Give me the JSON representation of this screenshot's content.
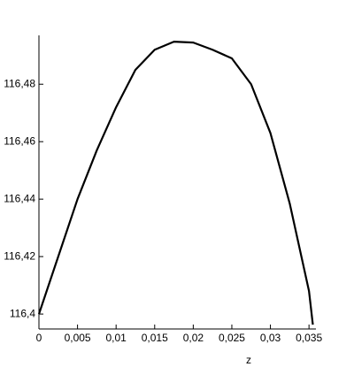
{
  "chart_data": {
    "type": "line",
    "xlabel": "z",
    "x": [
      0,
      0.0025,
      0.005,
      0.0075,
      0.01,
      0.0125,
      0.015,
      0.0175,
      0.02,
      0.0225,
      0.025,
      0.0275,
      0.03,
      0.0325,
      0.035,
      0.0355
    ],
    "values": [
      116.4,
      116.42,
      116.44,
      116.457,
      116.472,
      116.485,
      116.492,
      116.4948,
      116.4945,
      116.492,
      116.489,
      116.48,
      116.463,
      116.4385,
      116.408,
      116.3963
    ],
    "color": "#000000",
    "xlim": [
      0,
      0.0359
    ],
    "ylim": [
      116.3948,
      116.497
    ],
    "xticks": [
      0,
      {
        "value": 0.005,
        "label": "0,005"
      },
      {
        "value": 0.01,
        "label": "0,01"
      },
      {
        "value": 0.015,
        "label": "0,015"
      },
      {
        "value": 0.02,
        "label": "0,02"
      },
      {
        "value": 0.025,
        "label": "0,025"
      },
      {
        "value": 0.03,
        "label": "0,03"
      },
      {
        "value": 0.035,
        "label": "0,035"
      }
    ],
    "yticks": [
      {
        "value": 116.4,
        "label": "116,4"
      },
      {
        "value": 116.42,
        "label": "116,42"
      },
      {
        "value": 116.44,
        "label": "116,44"
      },
      {
        "value": 116.46,
        "label": "116,46"
      },
      {
        "value": 116.48,
        "label": "116,48"
      }
    ]
  }
}
